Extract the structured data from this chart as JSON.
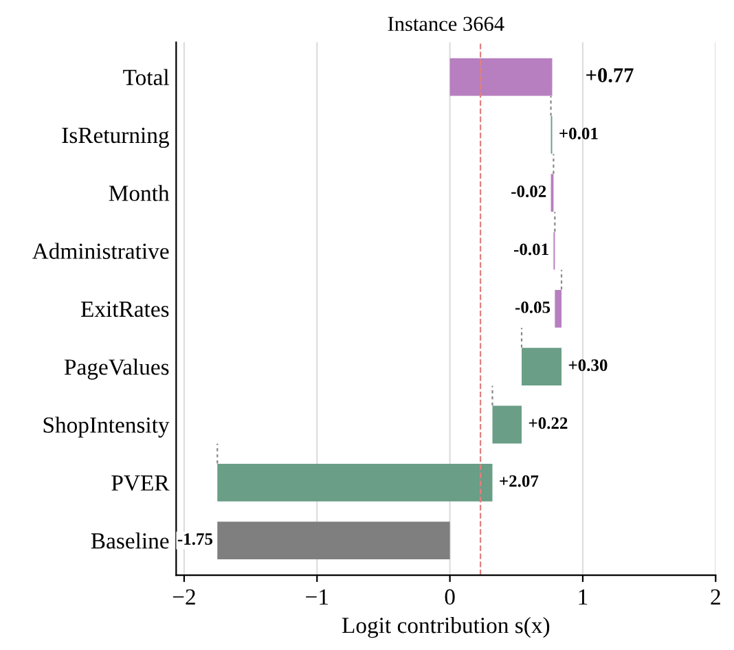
{
  "chart_data": {
    "type": "bar",
    "orientation": "horizontal",
    "title": "Instance 3664",
    "xlabel": "Logit contribution s(x)",
    "categories": [
      "Total",
      "IsReturning",
      "Month",
      "Administrative",
      "ExitRates",
      "PageValues",
      "ShopIntensity",
      "PVER",
      "Baseline"
    ],
    "values": [
      0.77,
      0.01,
      -0.02,
      -0.01,
      -0.05,
      0.3,
      0.22,
      2.07,
      -1.75
    ],
    "base": [
      0,
      0.76,
      0.78,
      0.79,
      0.84,
      0.54,
      0.32,
      -1.75,
      0
    ],
    "colors": [
      "#b77fc0",
      "#6a9e87",
      "#b77fc0",
      "#b77fc0",
      "#b77fc0",
      "#6a9e87",
      "#6a9e87",
      "#6a9e87",
      "#7f7f7f"
    ],
    "value_labels": [
      "+0.77",
      "+0.01",
      "-0.02",
      "-0.01",
      "-0.05",
      "+0.30",
      "+0.22",
      "+2.07",
      "-1.75"
    ],
    "xlim": [
      -2.06,
      2.0
    ],
    "xticks": [
      {
        "value": -2,
        "label": "−2"
      },
      {
        "value": -1,
        "label": "−1"
      },
      0,
      1,
      2
    ],
    "ref_lines": [
      {
        "axis": "x",
        "value": 0.23,
        "color": "#e08080",
        "line_style": "dashed"
      }
    ],
    "grid": "x"
  }
}
